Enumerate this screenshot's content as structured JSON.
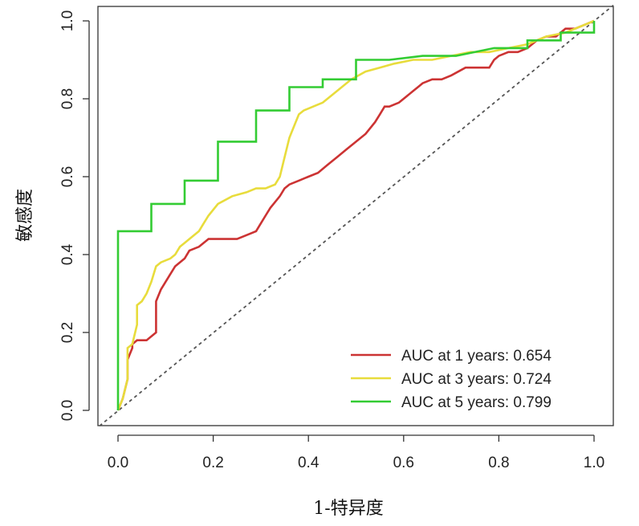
{
  "chart_data": {
    "type": "line",
    "title": "",
    "xlabel": "1-特异度",
    "ylabel": "敏感度",
    "xlim": [
      0,
      1
    ],
    "ylim": [
      0,
      1
    ],
    "xticks": [
      "0.0",
      "0.2",
      "0.4",
      "0.6",
      "0.8",
      "1.0"
    ],
    "yticks": [
      "0.0",
      "0.2",
      "0.4",
      "0.6",
      "0.8",
      "1.0"
    ],
    "grid": false,
    "legend_position": "bottom-right",
    "reference_line": {
      "style": "dashed",
      "color": "#555555",
      "x": [
        0,
        1
      ],
      "y": [
        0,
        1
      ]
    },
    "series": [
      {
        "name": "AUC at 1 years: 0.654",
        "color": "#cc3333",
        "x": [
          0,
          0.01,
          0.02,
          0.02,
          0.03,
          0.03,
          0.04,
          0.05,
          0.06,
          0.08,
          0.08,
          0.09,
          0.1,
          0.11,
          0.12,
          0.13,
          0.14,
          0.15,
          0.17,
          0.19,
          0.21,
          0.25,
          0.27,
          0.29,
          0.3,
          0.31,
          0.32,
          0.34,
          0.35,
          0.36,
          0.38,
          0.4,
          0.42,
          0.44,
          0.46,
          0.48,
          0.5,
          0.52,
          0.54,
          0.55,
          0.56,
          0.57,
          0.59,
          0.62,
          0.63,
          0.64,
          0.66,
          0.68,
          0.7,
          0.73,
          0.76,
          0.78,
          0.79,
          0.8,
          0.82,
          0.84,
          0.86,
          0.88,
          0.9,
          0.92,
          0.94,
          0.96,
          0.98,
          1.0
        ],
        "y": [
          0,
          0.03,
          0.08,
          0.13,
          0.16,
          0.17,
          0.18,
          0.18,
          0.18,
          0.2,
          0.28,
          0.31,
          0.33,
          0.35,
          0.37,
          0.38,
          0.39,
          0.41,
          0.42,
          0.44,
          0.44,
          0.44,
          0.45,
          0.46,
          0.48,
          0.5,
          0.52,
          0.55,
          0.57,
          0.58,
          0.59,
          0.6,
          0.61,
          0.63,
          0.65,
          0.67,
          0.69,
          0.71,
          0.74,
          0.76,
          0.78,
          0.78,
          0.79,
          0.82,
          0.83,
          0.84,
          0.85,
          0.85,
          0.86,
          0.88,
          0.88,
          0.88,
          0.9,
          0.91,
          0.92,
          0.92,
          0.93,
          0.95,
          0.96,
          0.96,
          0.98,
          0.98,
          0.99,
          1.0
        ]
      },
      {
        "name": "AUC at 3 years: 0.724",
        "color": "#e8dc3c",
        "x": [
          0,
          0.01,
          0.02,
          0.02,
          0.03,
          0.04,
          0.04,
          0.05,
          0.06,
          0.07,
          0.08,
          0.09,
          0.11,
          0.12,
          0.13,
          0.14,
          0.15,
          0.17,
          0.18,
          0.19,
          0.21,
          0.24,
          0.27,
          0.29,
          0.31,
          0.33,
          0.34,
          0.35,
          0.36,
          0.37,
          0.38,
          0.39,
          0.41,
          0.43,
          0.45,
          0.47,
          0.49,
          0.52,
          0.55,
          0.58,
          0.62,
          0.66,
          0.7,
          0.74,
          0.78,
          0.82,
          0.86,
          0.9,
          0.94,
          0.98,
          1.0
        ],
        "y": [
          0,
          0.03,
          0.08,
          0.16,
          0.17,
          0.22,
          0.27,
          0.28,
          0.3,
          0.33,
          0.37,
          0.38,
          0.39,
          0.4,
          0.42,
          0.43,
          0.44,
          0.46,
          0.48,
          0.5,
          0.53,
          0.55,
          0.56,
          0.57,
          0.57,
          0.58,
          0.6,
          0.65,
          0.7,
          0.73,
          0.76,
          0.77,
          0.78,
          0.79,
          0.81,
          0.83,
          0.85,
          0.87,
          0.88,
          0.89,
          0.9,
          0.9,
          0.91,
          0.92,
          0.92,
          0.93,
          0.94,
          0.96,
          0.97,
          0.99,
          1.0
        ]
      },
      {
        "name": "AUC at 5 years: 0.799",
        "color": "#33cc33",
        "x": [
          0,
          0,
          0.07,
          0.07,
          0.14,
          0.14,
          0.21,
          0.21,
          0.29,
          0.29,
          0.36,
          0.36,
          0.43,
          0.43,
          0.5,
          0.5,
          0.57,
          0.64,
          0.71,
          0.79,
          0.86,
          0.86,
          0.93,
          0.93,
          1.0,
          1.0
        ],
        "y": [
          0,
          0.46,
          0.46,
          0.53,
          0.53,
          0.59,
          0.59,
          0.69,
          0.69,
          0.77,
          0.77,
          0.83,
          0.83,
          0.85,
          0.85,
          0.9,
          0.9,
          0.91,
          0.91,
          0.93,
          0.93,
          0.95,
          0.95,
          0.97,
          0.97,
          1.0
        ]
      }
    ]
  }
}
